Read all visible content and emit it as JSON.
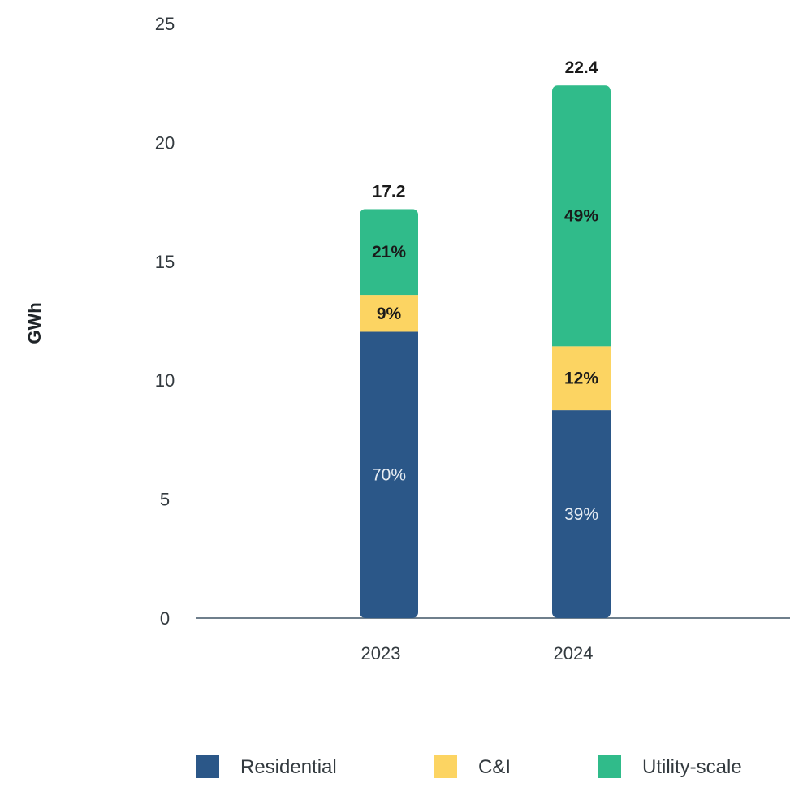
{
  "chart_data": {
    "type": "bar",
    "stacked": true,
    "categories": [
      "2023",
      "2024"
    ],
    "ylabel": "GWh",
    "ylim": [
      0,
      25
    ],
    "yticks": [
      "0",
      "5",
      "10",
      "15",
      "20",
      "25"
    ],
    "totals": [
      "17.2",
      "22.4"
    ],
    "series": [
      {
        "name": "Residential",
        "color": "#2b5788",
        "values": [
          12.04,
          8.74
        ],
        "labels": [
          "70%",
          "39%"
        ]
      },
      {
        "name": "C&I",
        "color": "#fcd462",
        "values": [
          1.55,
          2.69
        ],
        "labels": [
          "9%",
          "12%"
        ]
      },
      {
        "name": "Utility-scale",
        "color": "#30bb8a",
        "values": [
          3.61,
          10.97
        ],
        "labels": [
          "21%",
          "49%"
        ]
      }
    ],
    "legend_position": "bottom",
    "grid": false
  }
}
